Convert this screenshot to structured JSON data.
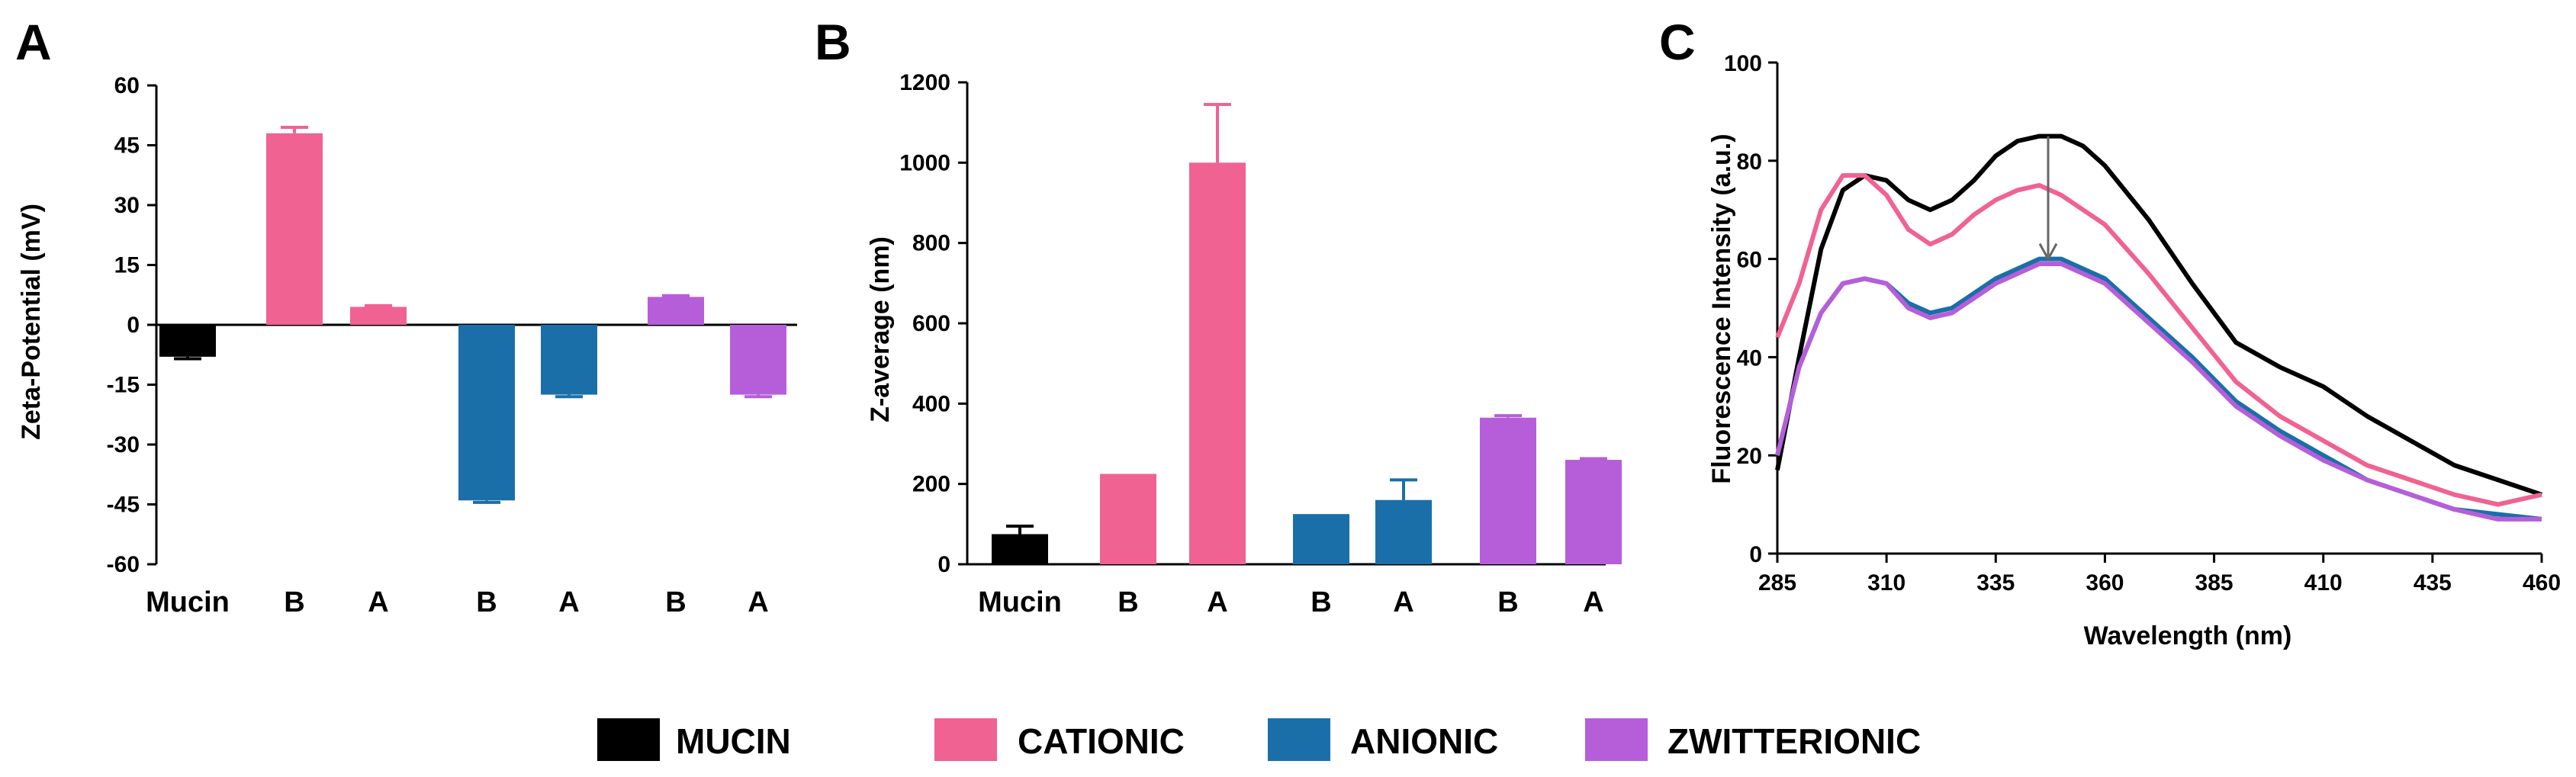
{
  "colors": {
    "MUCIN": "#000000",
    "CATIONIC": "#f06292",
    "ANIONIC": "#1a6fa8",
    "ZWITTERIONIC": "#b65ed9"
  },
  "legend": [
    {
      "label": "MUCIN",
      "key": "MUCIN"
    },
    {
      "label": "CATIONIC",
      "key": "CATIONIC"
    },
    {
      "label": "ANIONIC",
      "key": "ANIONIC"
    },
    {
      "label": "ZWITTERIONIC",
      "key": "ZWITTERIONIC"
    }
  ],
  "chart_data": [
    {
      "panel": "A",
      "type": "bar",
      "ylabel": "Zeta-Potential (mV)",
      "ylim": [
        -60,
        60
      ],
      "yticks": [
        60,
        45,
        30,
        15,
        0,
        -15,
        -30,
        -45,
        -60
      ],
      "bars": [
        {
          "label": "Mucin",
          "group": "MUCIN",
          "value": -8,
          "error": 0.5
        },
        {
          "label": "B",
          "group": "CATIONIC",
          "value": 48,
          "error": 1.5
        },
        {
          "label": "A",
          "group": "CATIONIC",
          "value": 4.5,
          "error": 0.3
        },
        {
          "label": "B",
          "group": "ANIONIC",
          "value": -44,
          "error": 0.5
        },
        {
          "label": "A",
          "group": "ANIONIC",
          "value": -17.5,
          "error": 0.5
        },
        {
          "label": "B",
          "group": "ZWITTERIONIC",
          "value": 7,
          "error": 0.3
        },
        {
          "label": "A",
          "group": "ZWITTERIONIC",
          "value": -17.5,
          "error": 0.5
        }
      ]
    },
    {
      "panel": "B",
      "type": "bar",
      "ylabel": "Z-average  (nm)",
      "ylim": [
        0,
        1200
      ],
      "yticks": [
        0,
        200,
        400,
        600,
        800,
        1000,
        1200
      ],
      "bars": [
        {
          "label": "Mucin",
          "group": "MUCIN",
          "value": 75,
          "error": 20
        },
        {
          "label": "B",
          "group": "CATIONIC",
          "value": 225,
          "error": 0
        },
        {
          "label": "A",
          "group": "CATIONIC",
          "value": 1000,
          "error": 145
        },
        {
          "label": "B",
          "group": "ANIONIC",
          "value": 125,
          "error": 0
        },
        {
          "label": "A",
          "group": "ANIONIC",
          "value": 160,
          "error": 50
        },
        {
          "label": "B",
          "group": "ZWITTERIONIC",
          "value": 365,
          "error": 5
        },
        {
          "label": "A",
          "group": "ZWITTERIONIC",
          "value": 260,
          "error": 3
        }
      ]
    },
    {
      "panel": "C",
      "type": "line",
      "xlabel": "Wavelength (nm)",
      "ylabel": "Fluorescence Intensity (a.u.)",
      "xlim": [
        285,
        460
      ],
      "ylim": [
        0,
        100
      ],
      "xticks": [
        285,
        310,
        335,
        360,
        385,
        410,
        435,
        460
      ],
      "yticks": [
        0,
        20,
        40,
        60,
        80,
        100
      ],
      "annotation": {
        "type": "arrow",
        "x": 347,
        "from_y": 85,
        "to_y": 60
      },
      "x": [
        285,
        290,
        295,
        300,
        305,
        310,
        315,
        320,
        325,
        330,
        335,
        340,
        345,
        350,
        355,
        360,
        370,
        380,
        390,
        400,
        410,
        420,
        430,
        440,
        450,
        460
      ],
      "series": [
        {
          "name": "MUCIN",
          "values": [
            17,
            40,
            62,
            74,
            77,
            76,
            72,
            70,
            72,
            76,
            81,
            84,
            85,
            85,
            83,
            79,
            68,
            55,
            43,
            38,
            34,
            28,
            23,
            18,
            15,
            12
          ]
        },
        {
          "name": "CATIONIC",
          "values": [
            44,
            55,
            70,
            77,
            77,
            73,
            66,
            63,
            65,
            69,
            72,
            74,
            75,
            73,
            70,
            67,
            57,
            46,
            35,
            28,
            23,
            18,
            15,
            12,
            10,
            12
          ]
        },
        {
          "name": "ANIONIC",
          "values": [
            20,
            38,
            49,
            55,
            56,
            55,
            51,
            49,
            50,
            53,
            56,
            58,
            60,
            60,
            58,
            56,
            48,
            40,
            31,
            25,
            20,
            15,
            12,
            9,
            8,
            7
          ]
        },
        {
          "name": "ZWITTERIONIC",
          "values": [
            20,
            38,
            49,
            55,
            56,
            55,
            50,
            48,
            49,
            52,
            55,
            57,
            59,
            59,
            57,
            55,
            47,
            39,
            30,
            24,
            19,
            15,
            12,
            9,
            7,
            7
          ]
        }
      ]
    }
  ]
}
